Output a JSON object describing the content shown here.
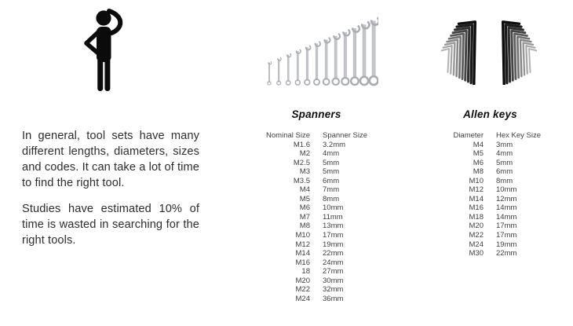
{
  "intro": {
    "paragraph1": "In general, tool sets have many different lengths, diameters, sizes and codes. It can take a lot of time to find the right tool.",
    "paragraph2": "Studies have estimated 10% of time is wasted in searching for the right tools."
  },
  "spanners": {
    "title": "Spanners",
    "col1_header": "Nominal Size",
    "col2_header": "Spanner Size",
    "rows": [
      [
        "M1.6",
        "3.2mm"
      ],
      [
        "M2",
        "4mm"
      ],
      [
        "M2.5",
        "5mm"
      ],
      [
        "M3",
        "5mm"
      ],
      [
        "M3.5",
        "6mm"
      ],
      [
        "M4",
        "7mm"
      ],
      [
        "M5",
        "8mm"
      ],
      [
        "M6",
        "10mm"
      ],
      [
        "M7",
        "11mm"
      ],
      [
        "M8",
        "13mm"
      ],
      [
        "M10",
        "17mm"
      ],
      [
        "M12",
        "19mm"
      ],
      [
        "M14",
        "22mm"
      ],
      [
        "M16",
        "24mm"
      ],
      [
        "18",
        "27mm"
      ],
      [
        "M20",
        "30mm"
      ],
      [
        "M22",
        "32mm"
      ],
      [
        "M24",
        "36mm"
      ]
    ]
  },
  "allen_keys": {
    "title": "Allen keys",
    "col1_header": "Diameter",
    "col2_header": "Hex Key Size",
    "rows": [
      [
        "M4",
        "3mm"
      ],
      [
        "M5",
        "4mm"
      ],
      [
        "M6",
        "5mm"
      ],
      [
        "M8",
        "6mm"
      ],
      [
        "M10",
        "8mm"
      ],
      [
        "M12",
        "10mm"
      ],
      [
        "M14",
        "12mm"
      ],
      [
        "M16",
        "14mm"
      ],
      [
        "M18",
        "14mm"
      ],
      [
        "M20",
        "17mm"
      ],
      [
        "M22",
        "17mm"
      ],
      [
        "M24",
        "19mm"
      ],
      [
        "M30",
        "22mm"
      ]
    ]
  },
  "icons": {
    "person": "thinking-person-icon",
    "spanner_image": "spanner-set-image",
    "allen_image": "allen-key-set-image"
  },
  "colors": {
    "background": "#ffffff",
    "body_text": "#2d2d2d",
    "table_text": "#3e3e3e",
    "title_text": "#0f0f0f",
    "icon_black": "#0b0b0b",
    "spanner_metal": "#c2c6ca",
    "spanner_metal_dark": "#a9adb2"
  }
}
